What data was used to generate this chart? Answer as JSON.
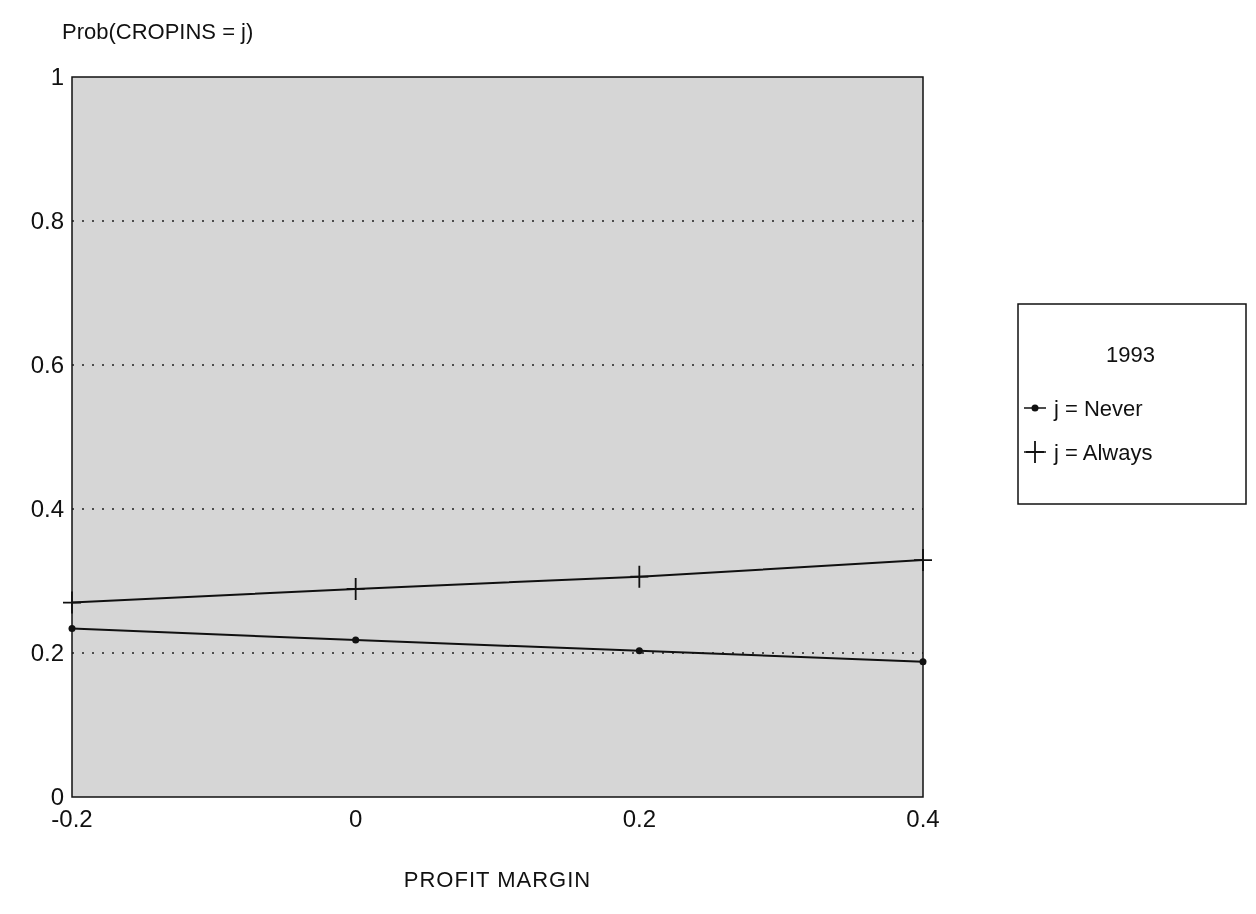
{
  "chart_data": {
    "type": "line",
    "ylabel": "Prob(CROPINS = j)",
    "xlabel": "PROFIT MARGIN",
    "legend_title": "1993",
    "x": [
      -0.2,
      0,
      0.2,
      0.4
    ],
    "series": [
      {
        "name": "j = Never",
        "color": "#111111",
        "values": [
          0.234,
          0.218,
          0.203,
          0.188
        ],
        "marker": "circle"
      },
      {
        "name": "j = Always",
        "color": "#111111",
        "values": [
          0.27,
          0.289,
          0.306,
          0.329
        ],
        "marker": "cross"
      }
    ],
    "xlim": [
      -0.2,
      0.4
    ],
    "ylim": [
      0,
      1
    ],
    "xticks": [
      -0.2,
      0,
      0.2,
      0.4
    ],
    "yticks": [
      0,
      0.2,
      0.4,
      0.6,
      0.8,
      1
    ],
    "grid": "y",
    "legend": "right",
    "line_style": "solid"
  }
}
